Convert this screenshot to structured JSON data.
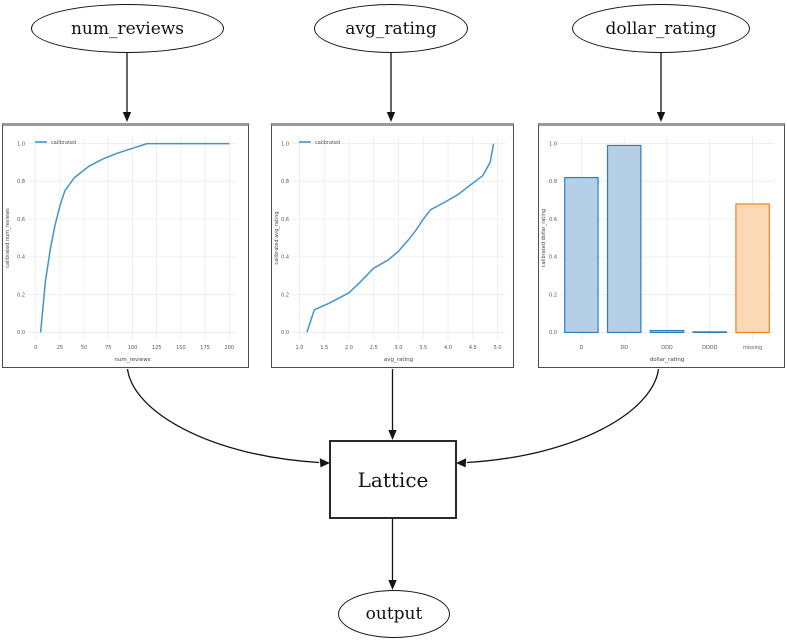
{
  "nodes": {
    "num_reviews": "num_reviews",
    "avg_rating": "avg_rating",
    "dollar_rating": "dollar_rating",
    "lattice": "Lattice",
    "output": "output"
  },
  "palette": {
    "edge_color": "#141414",
    "line_color": "#4394cd",
    "grid_color": "#ebebeb",
    "tick_text": "#555555",
    "label_text": "#444444",
    "bar_blue_fill": "#b5cfe6",
    "bar_blue_edge": "#2e7ebc",
    "bar_orange_fill": "#fcd9b5",
    "bar_orange_edge": "#ed8122"
  },
  "chart_data": [
    {
      "type": "line",
      "name": "num-reviews-calibrator",
      "xlabel": "num_reviews",
      "ylabel": "calibrated num_reviews",
      "legend": [
        "calibrated"
      ],
      "legend_position": "upper left",
      "grid": true,
      "xlim": [
        -8,
        208
      ],
      "ylim": [
        -0.04,
        1.04
      ],
      "xticks": [
        0,
        25,
        50,
        75,
        100,
        125,
        150,
        175,
        200
      ],
      "xtick_labels": [
        "0",
        "25",
        "50",
        "75",
        "100",
        "125",
        "150",
        "175",
        "200"
      ],
      "yticks": [
        0.0,
        0.2,
        0.4,
        0.6,
        0.8,
        1.0
      ],
      "ytick_labels": [
        "0.0",
        "0.2",
        "0.4",
        "0.6",
        "0.8",
        "1.0"
      ],
      "series": [
        {
          "name": "calibrated",
          "x": [
            5,
            10,
            15,
            20,
            25,
            30,
            40,
            55,
            70,
            85,
            100,
            115,
            200
          ],
          "y": [
            0.0,
            0.27,
            0.44,
            0.57,
            0.67,
            0.75,
            0.82,
            0.88,
            0.92,
            0.95,
            0.975,
            1.0,
            1.0
          ]
        }
      ]
    },
    {
      "type": "line",
      "name": "avg-rating-calibrator",
      "xlabel": "avg_rating",
      "ylabel": "calibrated avg_rating",
      "legend": [
        "calibrated"
      ],
      "legend_position": "upper left",
      "grid": true,
      "xlim": [
        0.85,
        5.15
      ],
      "ylim": [
        -0.04,
        1.04
      ],
      "xticks": [
        1.0,
        1.5,
        2.0,
        2.5,
        3.0,
        3.5,
        4.0,
        4.5,
        5.0
      ],
      "xtick_labels": [
        "1.0",
        "1.5",
        "2.0",
        "2.5",
        "3.0",
        "3.5",
        "4.0",
        "4.5",
        "5.0"
      ],
      "yticks": [
        0.0,
        0.2,
        0.4,
        0.6,
        0.8,
        1.0
      ],
      "ytick_labels": [
        "0.0",
        "0.2",
        "0.4",
        "0.6",
        "0.8",
        "1.0"
      ],
      "series": [
        {
          "name": "calibrated",
          "x": [
            1.15,
            1.3,
            1.6,
            2.0,
            2.2,
            2.5,
            2.8,
            3.0,
            3.2,
            3.35,
            3.5,
            3.65,
            3.9,
            4.2,
            4.5,
            4.7,
            4.85,
            4.92
          ],
          "y": [
            0.0,
            0.12,
            0.155,
            0.21,
            0.26,
            0.34,
            0.385,
            0.43,
            0.49,
            0.54,
            0.6,
            0.65,
            0.685,
            0.73,
            0.79,
            0.83,
            0.9,
            1.0
          ]
        }
      ]
    },
    {
      "type": "bar",
      "name": "dollar-rating-calibrator",
      "xlabel": "dollar_rating",
      "ylabel": "calibrated dollar_rating",
      "grid": true,
      "ylim": [
        -0.04,
        1.04
      ],
      "categories": [
        "D",
        "DD",
        "DDD",
        "DDDD",
        "missing"
      ],
      "values": [
        0.82,
        0.99,
        0.01,
        0.003,
        0.68
      ],
      "bar_palette": [
        "blue",
        "blue",
        "blue",
        "blue",
        "orange"
      ],
      "yticks": [
        0.0,
        0.2,
        0.4,
        0.6,
        0.8,
        1.0
      ],
      "ytick_labels": [
        "0.0",
        "0.2",
        "0.4",
        "0.6",
        "0.8",
        "1.0"
      ]
    }
  ]
}
